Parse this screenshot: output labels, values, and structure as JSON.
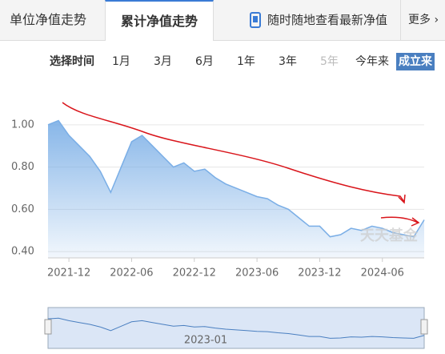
{
  "tabs": [
    "单位净值走势",
    "累计净值走势"
  ],
  "promo": "随时随地查看最新净值",
  "more": "更多",
  "range_label": "选择时间",
  "ranges": [
    "1月",
    "3月",
    "6月",
    "1年",
    "3年",
    "5年",
    "今年来",
    "成立来"
  ],
  "chart_data": {
    "type": "area",
    "color": "#7aaee6",
    "x": [
      "2021-10",
      "2021-11",
      "2021-12",
      "2022-01",
      "2022-02",
      "2022-03",
      "2022-04",
      "2022-05",
      "2022-06",
      "2022-07",
      "2022-08",
      "2022-09",
      "2022-10",
      "2022-11",
      "2022-12",
      "2023-01",
      "2023-02",
      "2023-03",
      "2023-04",
      "2023-05",
      "2023-06",
      "2023-07",
      "2023-08",
      "2023-09",
      "2023-10",
      "2023-11",
      "2023-12",
      "2024-01",
      "2024-02",
      "2024-03",
      "2024-04",
      "2024-05",
      "2024-06",
      "2024-07",
      "2024-08",
      "2024-09",
      "2024-10"
    ],
    "values": [
      1.0,
      1.02,
      0.95,
      0.9,
      0.85,
      0.78,
      0.68,
      0.8,
      0.92,
      0.95,
      0.9,
      0.85,
      0.8,
      0.82,
      0.78,
      0.79,
      0.75,
      0.72,
      0.7,
      0.68,
      0.66,
      0.65,
      0.62,
      0.6,
      0.56,
      0.52,
      0.52,
      0.47,
      0.48,
      0.51,
      0.5,
      0.52,
      0.51,
      0.49,
      0.48,
      0.47,
      0.55
    ],
    "ylim": [
      0.37,
      1.06
    ],
    "yticks": [
      {
        "value": 0.4,
        "label": "0.40"
      },
      {
        "value": 0.6,
        "label": "0.60"
      },
      {
        "value": 0.8,
        "label": "0.80"
      },
      {
        "value": 1,
        "label": "1.00"
      }
    ],
    "xticks": [
      "2021-12",
      "2022-06",
      "2022-12",
      "2023-06",
      "2023-12",
      "2024-06"
    ],
    "grid": true,
    "watermark": "天天基金",
    "navigator_label": "2023-01"
  }
}
